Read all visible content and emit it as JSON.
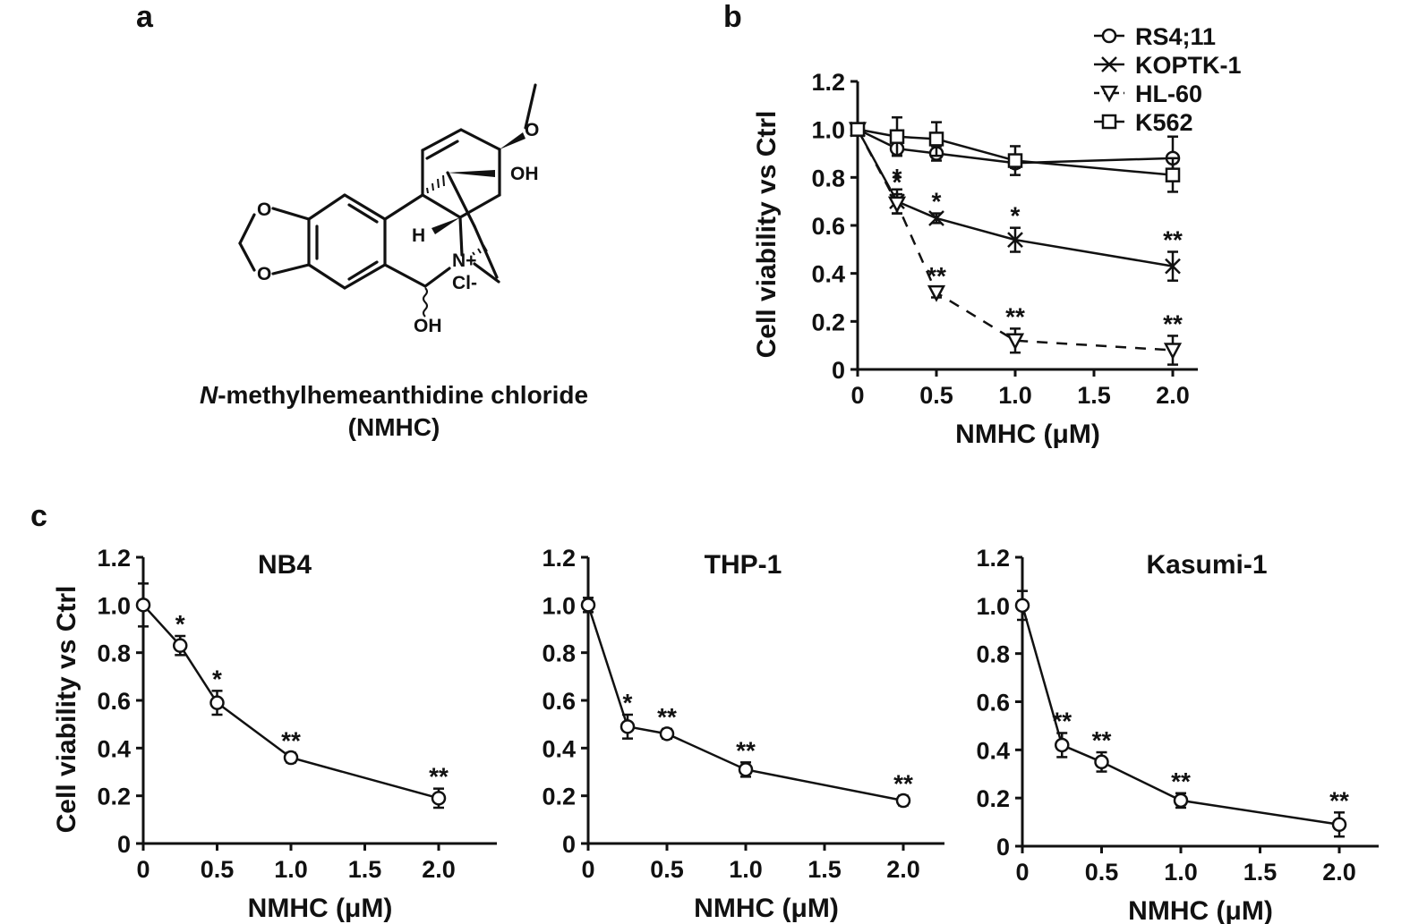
{
  "panels": {
    "a": {
      "letter": "a",
      "compound_name_italic": "N",
      "compound_name_rest": "-methylhemeanthidine chloride",
      "compound_abbrev": "(NMHC)",
      "structure_labels": [
        "O",
        "O",
        "O",
        "OH",
        "H",
        "N+",
        "Cl-",
        "OH"
      ]
    },
    "b": {
      "letter": "b"
    },
    "c": {
      "letter": "c"
    }
  },
  "chart_data": [
    {
      "id": "b",
      "type": "line",
      "title": "",
      "xlabel": "NMHC (μM)",
      "ylabel": "Cell viability vs Ctrl",
      "x": [
        0,
        0.25,
        0.5,
        1.0,
        2.0
      ],
      "xticks": [
        0,
        0.5,
        1.0,
        1.5,
        2.0
      ],
      "xtick_labels": [
        "0",
        "0.5",
        "1.0",
        "1.5",
        "2.0"
      ],
      "yticks": [
        0,
        0.2,
        0.4,
        0.6,
        0.8,
        1.0,
        1.2
      ],
      "ytick_labels": [
        "0",
        "0.2",
        "0.4",
        "0.6",
        "0.8",
        "1.0",
        "1.2"
      ],
      "ylim": [
        0,
        1.2
      ],
      "xlim": [
        0,
        2.2
      ],
      "grid": false,
      "legend_position": "top-right",
      "series": [
        {
          "name": "RS4;11",
          "marker": "circle",
          "dash": false,
          "values": [
            1.0,
            0.92,
            0.9,
            0.86,
            0.88
          ],
          "errors": [
            0.02,
            0.02,
            0.03,
            0.02,
            0.09
          ],
          "annotations": [
            "",
            "",
            "",
            "",
            ""
          ]
        },
        {
          "name": "KOPTK-1",
          "marker": "x",
          "dash": false,
          "values": [
            1.0,
            0.7,
            0.63,
            0.54,
            0.43
          ],
          "errors": [
            0.02,
            0.05,
            0.02,
            0.05,
            0.06
          ],
          "annotations": [
            "",
            "*",
            "*",
            "*",
            "**"
          ]
        },
        {
          "name": "HL-60",
          "marker": "triangle-down",
          "dash": true,
          "values": [
            1.0,
            0.69,
            0.32,
            0.12,
            0.08
          ],
          "errors": [
            0.02,
            0.04,
            0.02,
            0.05,
            0.06
          ],
          "annotations": [
            "",
            "*",
            "**",
            "**",
            "**"
          ]
        },
        {
          "name": "K562",
          "marker": "square",
          "dash": false,
          "values": [
            1.0,
            0.97,
            0.96,
            0.87,
            0.81
          ],
          "errors": [
            0.02,
            0.08,
            0.07,
            0.06,
            0.07
          ],
          "annotations": [
            "",
            "",
            "",
            "",
            ""
          ]
        }
      ]
    },
    {
      "id": "c-nb4",
      "type": "line",
      "title": "NB4",
      "xlabel": "NMHC (μM)",
      "ylabel": "Cell viability vs Ctrl",
      "x": [
        0,
        0.25,
        0.5,
        1.0,
        2.0
      ],
      "xtick_labels": [
        "0",
        "0.5",
        "1.0",
        "1.5",
        "2.0"
      ],
      "ytick_labels": [
        "0",
        "0.2",
        "0.4",
        "0.6",
        "0.8",
        "1.0",
        "1.2"
      ],
      "ylim": [
        0,
        1.2
      ],
      "series": [
        {
          "name": "NB4",
          "marker": "circle",
          "values": [
            1.0,
            0.83,
            0.59,
            0.36,
            0.19
          ],
          "errors": [
            0.09,
            0.04,
            0.05,
            0.02,
            0.04
          ],
          "annotations": [
            "",
            "*",
            "*",
            "**",
            "**"
          ]
        }
      ]
    },
    {
      "id": "c-thp1",
      "type": "line",
      "title": "THP-1",
      "xlabel": "NMHC (μM)",
      "ylabel": "",
      "x": [
        0,
        0.25,
        0.5,
        1.0,
        2.0
      ],
      "xtick_labels": [
        "0",
        "0.5",
        "1.0",
        "1.5",
        "2.0"
      ],
      "ytick_labels": [
        "0",
        "0.2",
        "0.4",
        "0.6",
        "0.8",
        "1.0",
        "1.2"
      ],
      "ylim": [
        0,
        1.2
      ],
      "series": [
        {
          "name": "THP-1",
          "marker": "circle",
          "values": [
            1.0,
            0.49,
            0.46,
            0.31,
            0.18
          ],
          "errors": [
            0.03,
            0.05,
            0.02,
            0.03,
            0.02
          ],
          "annotations": [
            "",
            "*",
            "**",
            "**",
            "**"
          ]
        }
      ]
    },
    {
      "id": "c-kasumi1",
      "type": "line",
      "title": "Kasumi-1",
      "xlabel": "NMHC (μM)",
      "ylabel": "",
      "x": [
        0,
        0.25,
        0.5,
        1.0,
        2.0
      ],
      "xtick_labels": [
        "0",
        "0.5",
        "1.0",
        "1.5",
        "2.0"
      ],
      "ytick_labels": [
        "0",
        "0.2",
        "0.4",
        "0.6",
        "0.8",
        "1.0",
        "1.2"
      ],
      "ylim": [
        0,
        1.2
      ],
      "series": [
        {
          "name": "Kasumi-1",
          "marker": "circle",
          "values": [
            1.0,
            0.42,
            0.35,
            0.19,
            0.09
          ],
          "errors": [
            0.06,
            0.05,
            0.04,
            0.03,
            0.05
          ],
          "annotations": [
            "",
            "**",
            "**",
            "**",
            "**"
          ]
        }
      ]
    }
  ]
}
